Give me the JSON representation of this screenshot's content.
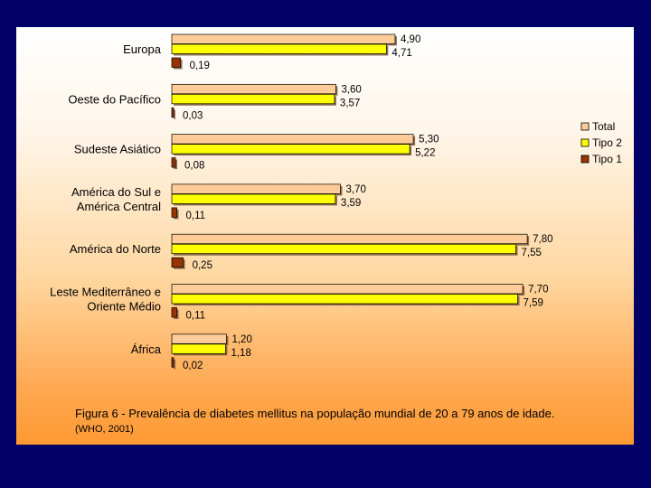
{
  "chart_data": {
    "type": "bar",
    "orientation": "horizontal",
    "categories": [
      [
        "Europa"
      ],
      [
        "Oeste do Pacífico"
      ],
      [
        "Sudeste Asiático"
      ],
      [
        "América do Sul e",
        "América Central"
      ],
      [
        "América do Norte"
      ],
      [
        "Leste Mediterrâneo e",
        "Oriente Médio"
      ],
      [
        "África"
      ]
    ],
    "series": [
      {
        "name": "Total",
        "color": "#ffcc99",
        "values": [
          4.9,
          3.6,
          5.3,
          3.7,
          7.8,
          7.7,
          1.2
        ],
        "labels": [
          "4,90",
          "3,60",
          "5,30",
          "3,70",
          "7,80",
          "7,70",
          "1,20"
        ]
      },
      {
        "name": "Tipo 2",
        "color": "#ffff00",
        "values": [
          4.71,
          3.57,
          5.22,
          3.59,
          7.55,
          7.59,
          1.18
        ],
        "labels": [
          "4,71",
          "3,57",
          "5,22",
          "3,59",
          "7,55",
          "7,59",
          "1,18"
        ]
      },
      {
        "name": "Tipo 1",
        "color": "#993300",
        "values": [
          0.19,
          0.03,
          0.08,
          0.11,
          0.25,
          0.11,
          0.02
        ],
        "labels": [
          "0,19",
          "0,03",
          "0,08",
          "0,11",
          "0,25",
          "0,11",
          "0,02"
        ]
      }
    ],
    "legend_position": "right",
    "grid": false
  },
  "caption": {
    "main": "Figura 6 - Prevalência de diabetes mellitus na população mundial de 20 a 79 anos de idade.",
    "source": "(WHO, 2001)"
  }
}
